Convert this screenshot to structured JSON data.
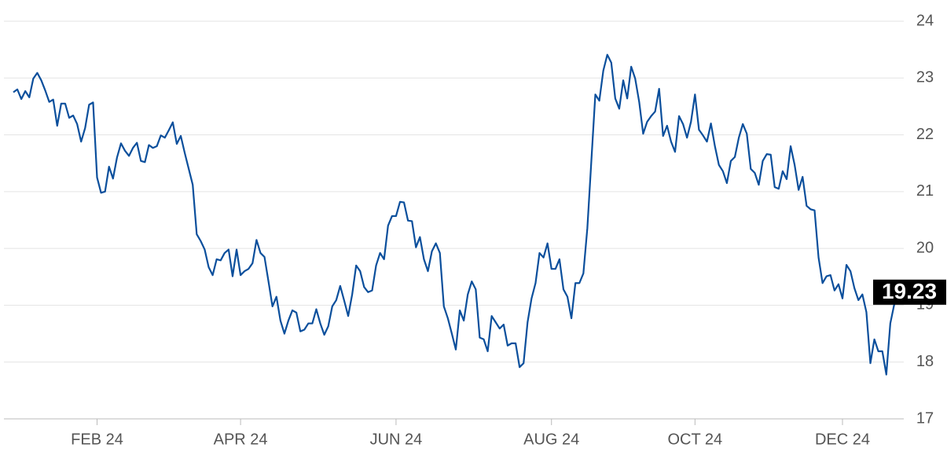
{
  "chart_data": {
    "type": "line",
    "color": "#0b4f9c",
    "grid": true,
    "ylim": [
      17,
      24
    ],
    "yticks": [
      17,
      18,
      19,
      20,
      21,
      22,
      23,
      24
    ],
    "categories": [
      null,
      null,
      null,
      null,
      null,
      null,
      null,
      null,
      null,
      null,
      null,
      null,
      null,
      null,
      null,
      null,
      null,
      null,
      null,
      null,
      null,
      "FEB 24",
      null,
      null,
      null,
      null,
      null,
      null,
      null,
      null,
      null,
      null,
      null,
      null,
      null,
      null,
      null,
      null,
      null,
      null,
      null,
      null,
      null,
      null,
      null,
      null,
      null,
      null,
      null,
      null,
      null,
      null,
      null,
      null,
      null,
      null,
      null,
      "APR 24",
      null,
      null,
      null,
      null,
      null,
      null,
      null,
      null,
      null,
      null,
      null,
      null,
      null,
      null,
      null,
      null,
      null,
      null,
      null,
      null,
      null,
      null,
      null,
      null,
      null,
      null,
      null,
      null,
      null,
      null,
      null,
      null,
      null,
      null,
      null,
      null,
      null,
      null,
      "JUN 24",
      null,
      null,
      null,
      null,
      null,
      null,
      null,
      null,
      null,
      null,
      null,
      null,
      null,
      null,
      null,
      null,
      null,
      null,
      null,
      null,
      null,
      null,
      null,
      null,
      null,
      null,
      null,
      null,
      null,
      null,
      null,
      null,
      null,
      null,
      null,
      null,
      null,
      null,
      "AUG 24",
      null,
      null,
      null,
      null,
      null,
      null,
      null,
      null,
      null,
      null,
      null,
      null,
      null,
      null,
      null,
      null,
      null,
      null,
      null,
      null,
      null,
      null,
      null,
      null,
      null,
      null,
      null,
      null,
      null,
      null,
      null,
      null,
      null,
      null,
      null,
      "OCT 24",
      null,
      null,
      null,
      null,
      null,
      null,
      null,
      null,
      null,
      null,
      null,
      null,
      null,
      null,
      null,
      null,
      null,
      null,
      null,
      null,
      null,
      null,
      null,
      null,
      null,
      null,
      null,
      null,
      null,
      null,
      null,
      null,
      null,
      null,
      null,
      null,
      "DEC 24",
      null,
      null,
      null,
      null,
      null,
      null,
      null,
      null,
      null,
      null,
      null,
      null,
      null,
      null
    ],
    "values": [
      22.75,
      22.8,
      22.63,
      22.77,
      22.66,
      22.99,
      23.09,
      22.96,
      22.78,
      22.58,
      22.62,
      22.16,
      22.55,
      22.55,
      22.3,
      22.34,
      22.19,
      21.88,
      22.12,
      22.53,
      22.57,
      21.25,
      20.98,
      21.0,
      21.44,
      21.23,
      21.6,
      21.85,
      21.72,
      21.63,
      21.77,
      21.86,
      21.54,
      21.52,
      21.82,
      21.77,
      21.8,
      21.99,
      21.95,
      22.08,
      22.22,
      21.84,
      21.98,
      21.68,
      21.4,
      21.12,
      20.25,
      20.13,
      19.98,
      19.67,
      19.53,
      19.81,
      19.79,
      19.92,
      19.98,
      19.51,
      19.98,
      19.53,
      19.6,
      19.64,
      19.74,
      20.15,
      19.92,
      19.85,
      19.42,
      18.98,
      19.15,
      18.73,
      18.5,
      18.73,
      18.91,
      18.87,
      18.54,
      18.57,
      18.68,
      18.68,
      18.93,
      18.68,
      18.48,
      18.63,
      18.98,
      19.09,
      19.34,
      19.08,
      18.81,
      19.19,
      19.7,
      19.6,
      19.32,
      19.23,
      19.26,
      19.7,
      19.92,
      19.81,
      20.4,
      20.57,
      20.57,
      20.82,
      20.81,
      20.49,
      20.48,
      20.02,
      20.2,
      19.81,
      19.6,
      19.95,
      20.09,
      19.92,
      18.98,
      18.77,
      18.5,
      18.22,
      18.91,
      18.73,
      19.19,
      19.42,
      19.28,
      18.43,
      18.4,
      18.19,
      18.81,
      18.7,
      18.59,
      18.66,
      18.29,
      18.33,
      18.33,
      17.91,
      17.98,
      18.7,
      19.12,
      19.39,
      19.92,
      19.84,
      20.09,
      19.64,
      19.64,
      19.81,
      19.28,
      19.15,
      18.77,
      19.39,
      19.39,
      19.56,
      20.36,
      21.54,
      22.71,
      22.6,
      23.13,
      23.41,
      23.27,
      22.64,
      22.46,
      22.96,
      22.64,
      23.2,
      22.99,
      22.58,
      22.02,
      22.23,
      22.33,
      22.41,
      22.81,
      21.98,
      22.16,
      21.88,
      21.7,
      22.33,
      22.19,
      21.95,
      22.23,
      22.71,
      22.09,
      21.99,
      21.88,
      22.2,
      21.8,
      21.47,
      21.36,
      21.15,
      21.54,
      21.61,
      21.95,
      22.19,
      22.02,
      21.4,
      21.33,
      21.12,
      21.54,
      21.66,
      21.65,
      21.08,
      21.05,
      21.36,
      21.22,
      21.8,
      21.47,
      21.03,
      21.26,
      20.75,
      20.69,
      20.67,
      19.84,
      19.39,
      19.51,
      19.53,
      19.26,
      19.37,
      19.12,
      19.71,
      19.6,
      19.3,
      19.09,
      19.19,
      18.88,
      17.98,
      18.4,
      18.19,
      18.19,
      17.78,
      18.68,
      19.02,
      19.23
    ]
  }
}
